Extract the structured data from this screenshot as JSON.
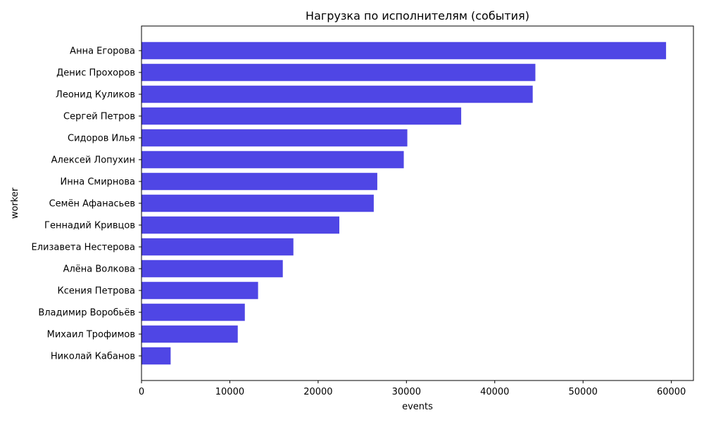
{
  "chart_data": {
    "type": "bar",
    "orientation": "horizontal",
    "title": "Нагрузка по исполнителям (события)",
    "xlabel": "events",
    "ylabel": "worker",
    "xlim": [
      0,
      62500
    ],
    "xticks": [
      0,
      10000,
      20000,
      30000,
      40000,
      50000,
      60000
    ],
    "xtick_labels": [
      "0",
      "10000",
      "20000",
      "30000",
      "40000",
      "50000",
      "60000"
    ],
    "grid": false,
    "bar_color": "#4f46e5",
    "categories": [
      "Анна Егорова",
      "Денис Прохоров",
      "Леонид Куликов",
      "Сергей Петров",
      "Сидоров Илья",
      "Алексей Лопухин",
      "Инна Смирнова",
      "Семён Афанасьев",
      "Геннадий Кривцов",
      "Елизавета Нестерова",
      "Алёна Волкова",
      "Ксения Петрова",
      "Владимир Воробьёв",
      "Михаил Трофимов",
      "Николай Кабанов"
    ],
    "values": [
      59400,
      44600,
      44300,
      36200,
      30100,
      29700,
      26700,
      26300,
      22400,
      17200,
      16000,
      13200,
      11700,
      10900,
      3300
    ]
  }
}
